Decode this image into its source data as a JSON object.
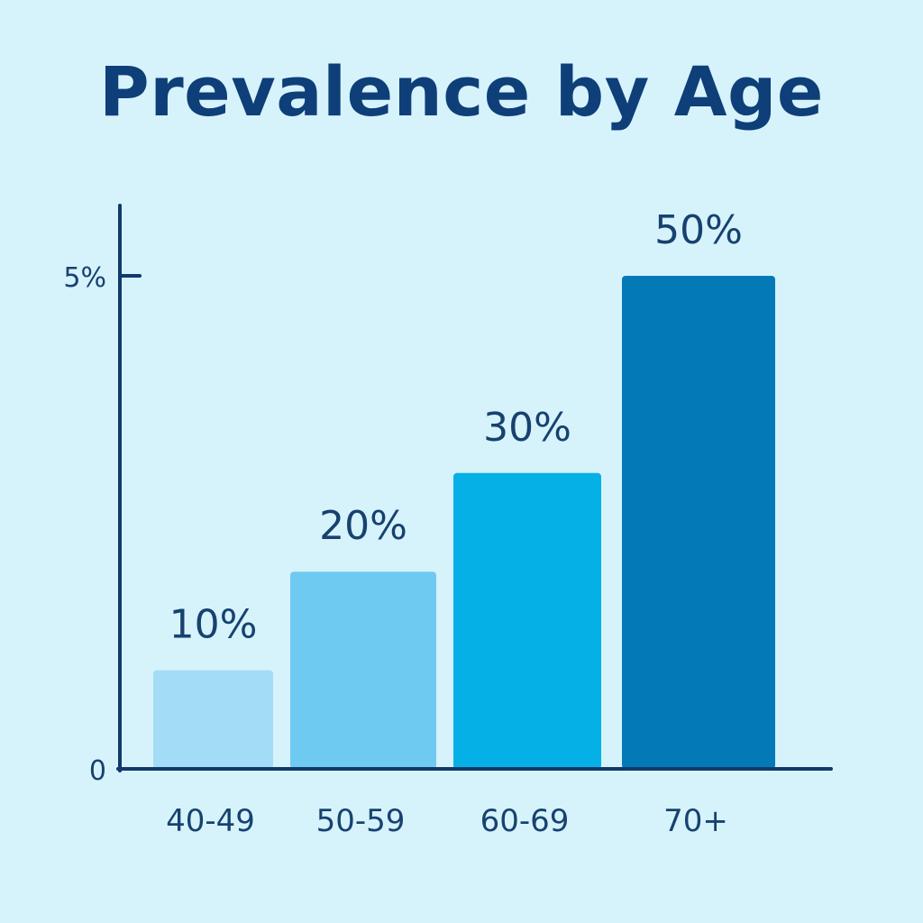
{
  "chart_data": {
    "type": "bar",
    "title": "Prevalence by Age",
    "xlabel": "",
    "ylabel": "",
    "categories": [
      "40-49",
      "50-59",
      "60-69",
      "70+"
    ],
    "values": [
      10,
      20,
      30,
      50
    ],
    "data_labels": [
      "10%",
      "20%",
      "30%",
      "50%"
    ],
    "y_ticks": [
      {
        "value": 0,
        "label": "0"
      },
      {
        "value": 5,
        "label": "5%"
      }
    ],
    "ylim": [
      0,
      5.57
    ],
    "bar_colors": [
      "#a3dcf6",
      "#6fcaf1",
      "#04b0e6",
      "#0479b7"
    ],
    "axis_color": "#12396b",
    "grid": false,
    "legend": "none"
  }
}
